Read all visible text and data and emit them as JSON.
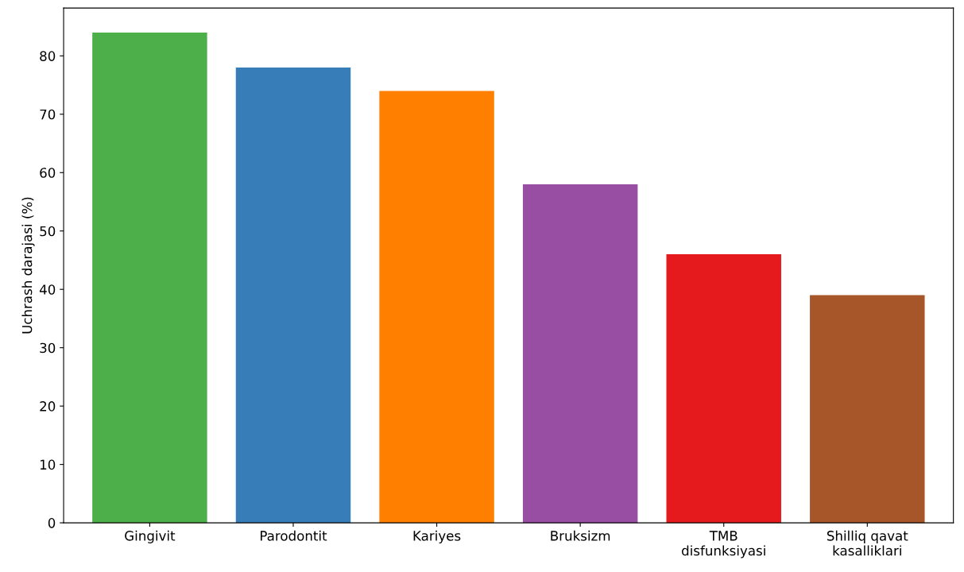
{
  "chart_data": {
    "type": "bar",
    "ylabel": "Uchrash darajasi (%)",
    "categories": [
      "Gingivit",
      "Parodontit",
      "Kariyes",
      "Bruksizm",
      "TMB\ndisfunksiyasi",
      "Shilliq qavat\nkasalliklari"
    ],
    "values": [
      84,
      78,
      74,
      58,
      46,
      39
    ],
    "colors": [
      "#4daf4a",
      "#377eb8",
      "#ff7f00",
      "#984ea3",
      "#e41a1c",
      "#a65628"
    ],
    "ylim": [
      0,
      88.2
    ],
    "yticks": [
      0,
      10,
      20,
      30,
      40,
      50,
      60,
      70,
      80
    ],
    "grid": false
  }
}
